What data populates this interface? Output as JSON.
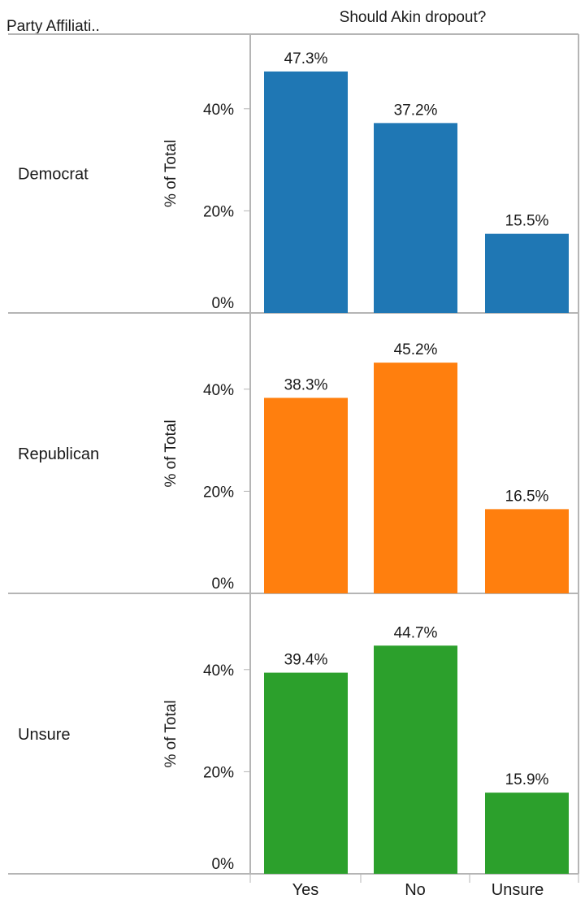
{
  "chart_data": {
    "type": "bar",
    "title": "Should Akin dropout?",
    "row_header": "Party Affiliati..",
    "ylabel": "% of Total",
    "ylim": [
      0,
      50
    ],
    "yticks": [
      "0%",
      "20%",
      "40%"
    ],
    "categories": [
      "Yes",
      "No",
      "Unsure"
    ],
    "series": [
      {
        "name": "Democrat",
        "color": "#1f77b4",
        "values": [
          47.3,
          37.2,
          15.5
        ],
        "labels": [
          "47.3%",
          "37.2%",
          "15.5%"
        ]
      },
      {
        "name": "Republican",
        "color": "#ff7f0e",
        "values": [
          38.3,
          45.2,
          16.5
        ],
        "labels": [
          "38.3%",
          "45.2%",
          "16.5%"
        ]
      },
      {
        "name": "Unsure",
        "color": "#2ca02c",
        "values": [
          39.4,
          44.7,
          15.9
        ],
        "labels": [
          "39.4%",
          "44.7%",
          "15.9%"
        ]
      }
    ]
  }
}
